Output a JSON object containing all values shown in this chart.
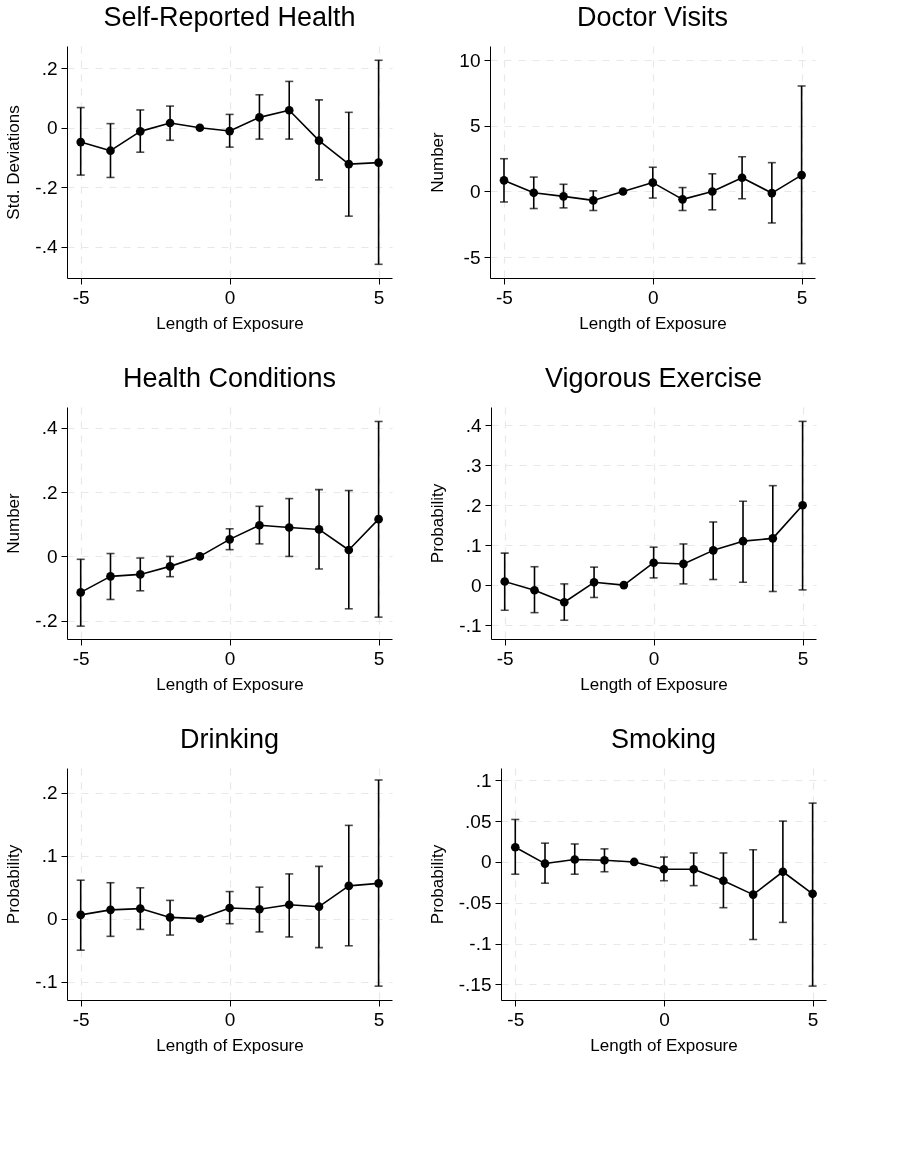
{
  "chart_data": [
    {
      "type": "line",
      "title": "Self-Reported Health",
      "xlabel": "Length of Exposure",
      "ylabel": "Std. Deviations",
      "color": "#000000",
      "marker": "circle",
      "line_style": "solid",
      "grid": true,
      "x": [
        -5,
        -4,
        -3,
        -2,
        -1,
        0,
        1,
        2,
        3,
        4,
        5
      ],
      "values": [
        -0.048,
        -0.077,
        -0.012,
        0.016,
        0,
        -0.011,
        0.035,
        0.059,
        -0.043,
        -0.122,
        -0.117
      ],
      "errors": [
        [
          -0.159,
          0.068
        ],
        [
          -0.167,
          0.014
        ],
        [
          -0.082,
          0.06
        ],
        [
          -0.042,
          0.073
        ],
        null,
        [
          -0.065,
          0.045
        ],
        [
          -0.038,
          0.111
        ],
        [
          -0.038,
          0.156
        ],
        [
          -0.175,
          0.094
        ],
        [
          -0.297,
          0.052
        ],
        [
          -0.459,
          0.227
        ]
      ],
      "xlim": [
        -5.46,
        5.45
      ],
      "xticks": [
        -5,
        0,
        5
      ],
      "ylim": [
        -0.505,
        0.275
      ],
      "yticks": [
        {
          "value": 0.2,
          "label": ".2"
        },
        0,
        {
          "value": -0.2,
          "label": "-.2"
        },
        {
          "value": -0.4,
          "label": "-.4"
        }
      ]
    },
    {
      "type": "line",
      "title": "Doctor Visits",
      "xlabel": "Length of Exposure",
      "ylabel": "Number",
      "color": "#000000",
      "marker": "circle",
      "line_style": "solid",
      "grid": true,
      "x": [
        -5,
        -4,
        -3,
        -2,
        -1,
        0,
        1,
        2,
        3,
        4,
        5
      ],
      "values": [
        0.85,
        -0.1,
        -0.37,
        -0.68,
        0,
        0.68,
        -0.6,
        0,
        1.05,
        -0.12,
        1.25
      ],
      "errors": [
        [
          -0.8,
          2.5
        ],
        [
          -1.3,
          1.1
        ],
        [
          -1.25,
          0.55
        ],
        [
          -1.45,
          0.05
        ],
        null,
        [
          -0.5,
          1.85
        ],
        [
          -1.45,
          0.3
        ],
        [
          -1.4,
          1.35
        ],
        [
          -0.55,
          2.65
        ],
        [
          -2.4,
          2.2
        ],
        [
          -5.5,
          8.05
        ]
      ],
      "xlim": [
        -5.47,
        5.45
      ],
      "xticks": [
        -5,
        0,
        5
      ],
      "ylim": [
        -6.6,
        11.1
      ],
      "yticks": [
        10,
        5,
        0,
        -5
      ]
    },
    {
      "type": "line",
      "title": "Health Conditions",
      "xlabel": "Length of Exposure",
      "ylabel": "Number",
      "color": "#000000",
      "marker": "circle",
      "line_style": "solid",
      "grid": true,
      "x": [
        -5,
        -4,
        -3,
        -2,
        -1,
        0,
        1,
        2,
        3,
        4,
        5
      ],
      "values": [
        -0.112,
        -0.062,
        -0.056,
        -0.031,
        0,
        0.053,
        0.097,
        0.09,
        0.084,
        0.02,
        0.116
      ],
      "errors": [
        [
          -0.217,
          -0.009
        ],
        [
          -0.134,
          0.009
        ],
        [
          -0.107,
          -0.005
        ],
        [
          -0.063,
          0
        ],
        null,
        [
          0.021,
          0.086
        ],
        [
          0.039,
          0.156
        ],
        [
          0,
          0.18
        ],
        [
          -0.039,
          0.208
        ],
        [
          -0.163,
          0.205
        ],
        [
          -0.189,
          0.42
        ]
      ],
      "xlim": [
        -5.46,
        5.45
      ],
      "xticks": [
        -5,
        0,
        5
      ],
      "ylim": [
        -0.257,
        0.465
      ],
      "yticks": [
        {
          "value": 0.4,
          "label": ".4"
        },
        {
          "value": 0.2,
          "label": ".2"
        },
        0,
        {
          "value": -0.2,
          "label": "-.2"
        }
      ]
    },
    {
      "type": "line",
      "title": "Vigorous Exercise",
      "xlabel": "Length of Exposure",
      "ylabel": "Probability",
      "color": "#000000",
      "marker": "circle",
      "line_style": "solid",
      "grid": true,
      "x": [
        -5,
        -4,
        -3,
        -2,
        -1,
        0,
        1,
        2,
        3,
        4,
        5
      ],
      "values": [
        0.009,
        -0.013,
        -0.043,
        0.007,
        0,
        0.056,
        0.053,
        0.087,
        0.11,
        0.117,
        0.2
      ],
      "errors": [
        [
          -0.063,
          0.08
        ],
        [
          -0.069,
          0.046
        ],
        [
          -0.088,
          0.003
        ],
        [
          -0.031,
          0.045
        ],
        null,
        [
          0.018,
          0.095
        ],
        [
          0.003,
          0.103
        ],
        [
          0.014,
          0.158
        ],
        [
          0.007,
          0.21
        ],
        [
          -0.016,
          0.249
        ],
        [
          -0.012,
          0.41
        ]
      ],
      "xlim": [
        -5.46,
        5.45
      ],
      "xticks": [
        -5,
        0,
        5
      ],
      "ylim": [
        -0.135,
        0.446
      ],
      "yticks": [
        {
          "value": 0.4,
          "label": ".4"
        },
        {
          "value": 0.3,
          "label": ".3"
        },
        {
          "value": 0.2,
          "label": ".2"
        },
        {
          "value": 0.1,
          "label": ".1"
        },
        0,
        {
          "value": -0.1,
          "label": "-.1"
        }
      ]
    },
    {
      "type": "line",
      "title": "Drinking",
      "xlabel": "Length of Exposure",
      "ylabel": "Probability",
      "color": "#000000",
      "marker": "circle",
      "line_style": "solid",
      "grid": true,
      "x": [
        -5,
        -4,
        -3,
        -2,
        -1,
        0,
        1,
        2,
        3,
        4,
        5
      ],
      "values": [
        0.006,
        0.014,
        0.016,
        0.002,
        0,
        0.017,
        0.015,
        0.022,
        0.019,
        0.052,
        0.056
      ],
      "errors": [
        [
          -0.05,
          0.061
        ],
        [
          -0.028,
          0.057
        ],
        [
          -0.017,
          0.049
        ],
        [
          -0.026,
          0.029
        ],
        null,
        [
          -0.008,
          0.043
        ],
        [
          -0.021,
          0.05
        ],
        [
          -0.029,
          0.071
        ],
        [
          -0.046,
          0.083
        ],
        [
          -0.043,
          0.148
        ],
        [
          -0.107,
          0.22
        ]
      ],
      "xlim": [
        -5.46,
        5.45
      ],
      "xticks": [
        -5,
        0,
        5
      ],
      "ylim": [
        -0.129,
        0.239
      ],
      "yticks": [
        {
          "value": 0.2,
          "label": ".2"
        },
        {
          "value": 0.1,
          "label": ".1"
        },
        0,
        {
          "value": -0.1,
          "label": "-.1"
        }
      ]
    },
    {
      "type": "line",
      "title": "Smoking",
      "xlabel": "Length of Exposure",
      "ylabel": "Probability",
      "color": "#000000",
      "marker": "circle",
      "line_style": "solid",
      "grid": true,
      "x": [
        -5,
        -4,
        -3,
        -2,
        -1,
        0,
        1,
        2,
        3,
        4,
        5
      ],
      "values": [
        0.018,
        -0.002,
        0.003,
        0.002,
        0,
        -0.009,
        -0.009,
        -0.023,
        -0.04,
        -0.012,
        -0.039
      ],
      "errors": [
        [
          -0.015,
          0.052
        ],
        [
          -0.026,
          0.023
        ],
        [
          -0.015,
          0.022
        ],
        [
          -0.012,
          0.016
        ],
        null,
        [
          -0.023,
          0.006
        ],
        [
          -0.029,
          0.011
        ],
        [
          -0.056,
          0.011
        ],
        [
          -0.095,
          0.015
        ],
        [
          -0.074,
          0.05
        ],
        [
          -0.152,
          0.072
        ]
      ],
      "xlim": [
        -5.48,
        5.45
      ],
      "xticks": [
        -5,
        0,
        5
      ],
      "ylim": [
        -0.169,
        0.115
      ],
      "yticks": [
        {
          "value": 0.1,
          "label": ".1"
        },
        {
          "value": 0.05,
          "label": ".05"
        },
        0,
        {
          "value": -0.05,
          "label": "-.05"
        },
        {
          "value": -0.1,
          "label": "-.1"
        },
        {
          "value": -0.15,
          "label": "-.15"
        }
      ]
    }
  ]
}
